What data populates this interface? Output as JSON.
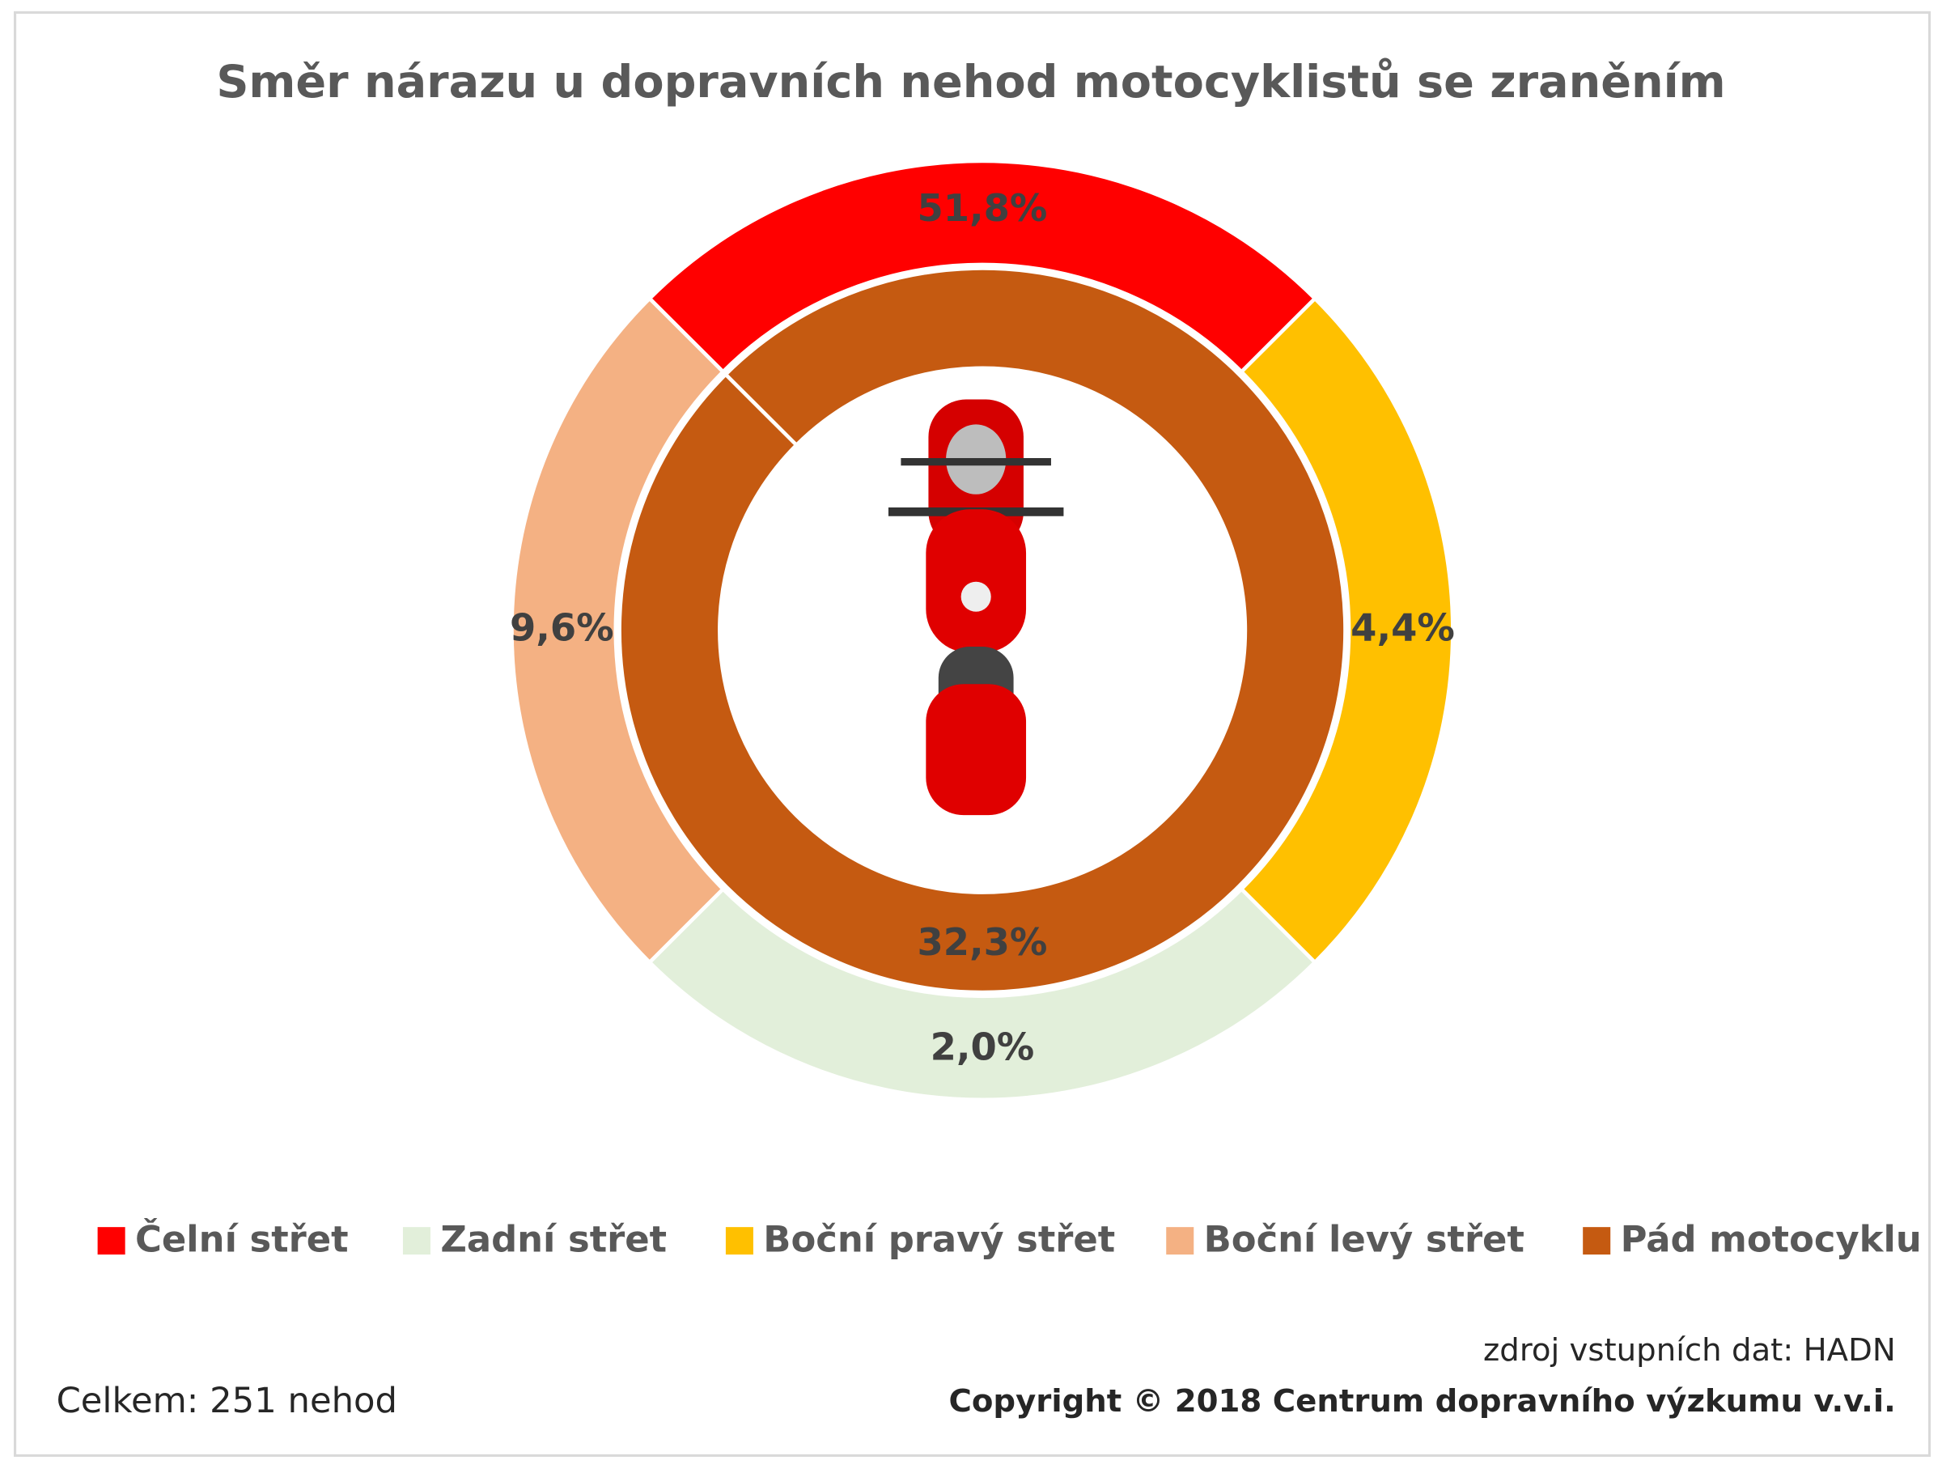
{
  "chart_data": {
    "type": "donut",
    "title": "Směr nárazu u dopravních nehod motocyklistů se zraněním",
    "categories": [
      "Čelní střet",
      "Zadní střet",
      "Boční pravý střet",
      "Boční levý střet",
      "Pád motocyklu"
    ],
    "values": [
      51.8,
      2.0,
      4.4,
      9.6,
      32.3
    ],
    "value_labels": [
      "51,8%",
      "2,0%",
      "4,4%",
      "9,6%",
      "32,3%"
    ],
    "colors": [
      "#ff0000",
      "#e2efda",
      "#ffc000",
      "#f4b183",
      "#c55a11"
    ],
    "annotations": [
      "Celkem: 251 nehod",
      "zdroj vstupních dat: HADN",
      "Copyright © 2018 Centrum dopravního výzkumu v.v.i."
    ]
  }
}
